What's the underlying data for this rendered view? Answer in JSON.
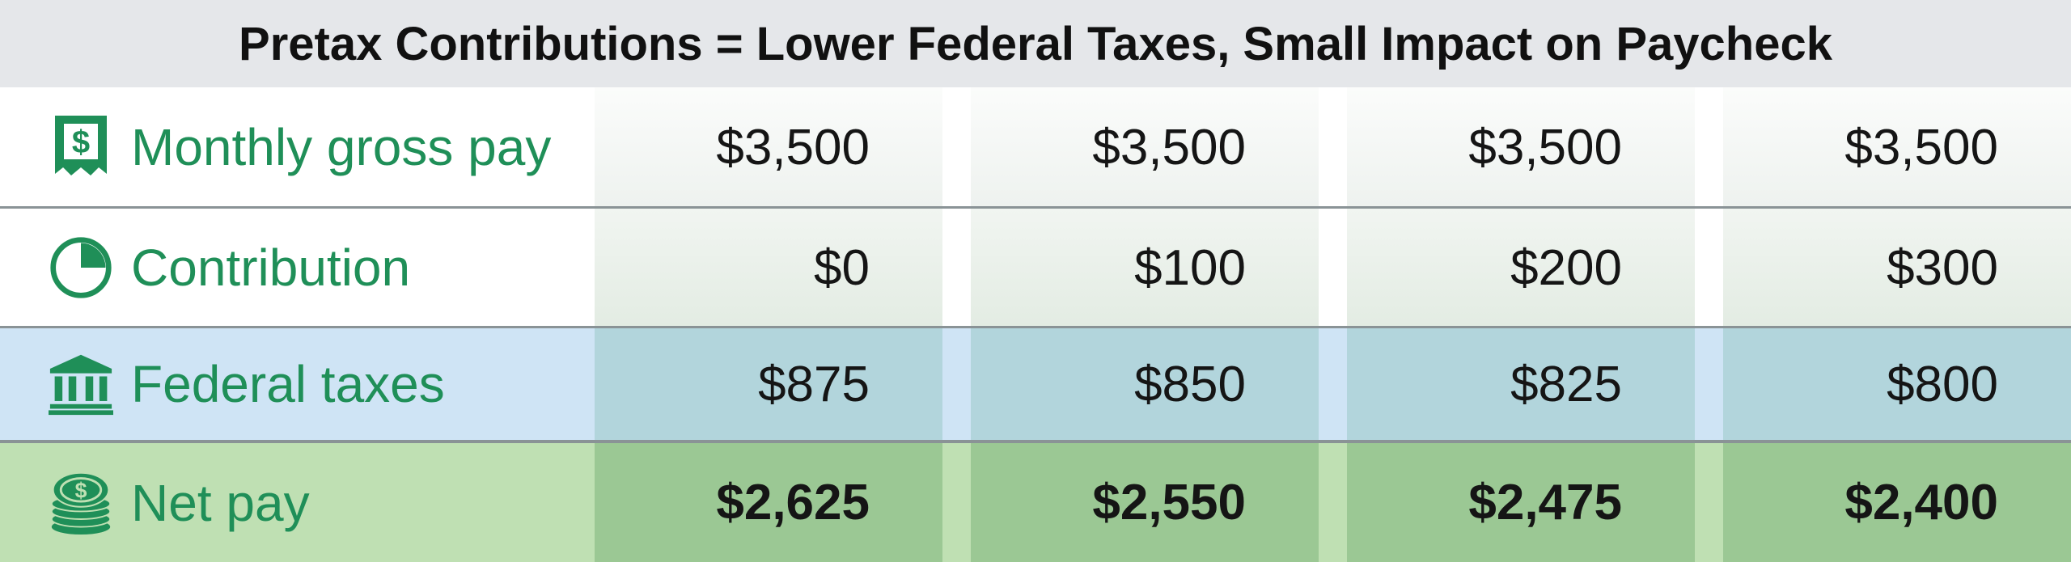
{
  "chart_data": {
    "type": "table",
    "title": "Pretax Contributions = Lower Federal Taxes, Small Impact on Paycheck",
    "rows": [
      {
        "key": "gross",
        "label": "Monthly gross pay",
        "icon": "receipt-dollar-icon",
        "values": [
          "$3,500",
          "$3,500",
          "$3,500",
          "$3,500"
        ]
      },
      {
        "key": "contrib",
        "label": "Contribution",
        "icon": "pie-chart-icon",
        "values": [
          "$0",
          "$100",
          "$200",
          "$300"
        ]
      },
      {
        "key": "taxes",
        "label": "Federal taxes",
        "icon": "bank-building-icon",
        "values": [
          "$875",
          "$850",
          "$825",
          "$800"
        ]
      },
      {
        "key": "net",
        "label": "Net pay",
        "icon": "coin-stack-icon",
        "values": [
          "$2,625",
          "$2,550",
          "$2,475",
          "$2,400"
        ]
      }
    ]
  },
  "colors": {
    "label_green": "#1f8f58",
    "taxes_row": "#cfe4f5",
    "net_row": "#bfe0b3",
    "title_bar": "#e5e7ea"
  }
}
